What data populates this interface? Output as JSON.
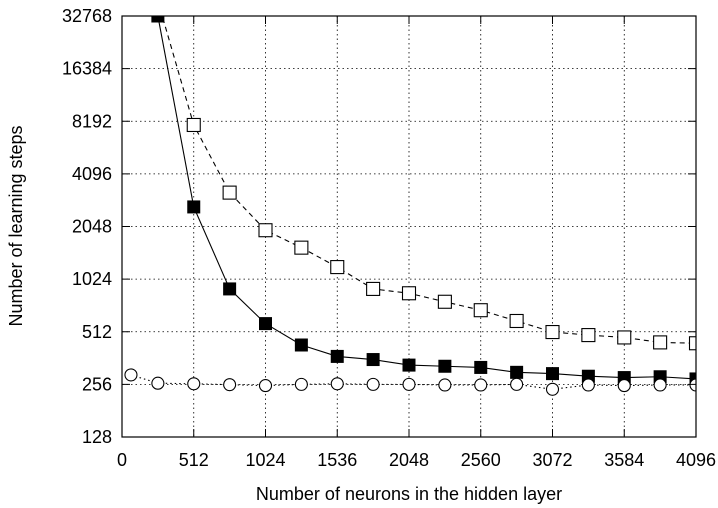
{
  "chart_data": {
    "type": "line",
    "xlabel": "Number of neurons in the hidden layer",
    "ylabel": "Number of learning steps",
    "xlim": [
      0,
      4096
    ],
    "ylim": [
      128,
      32768
    ],
    "yscale": "log2",
    "grid": true,
    "x_ticks": [
      0,
      512,
      1024,
      1536,
      2048,
      2560,
      3072,
      3584,
      4096
    ],
    "y_ticks": [
      128,
      256,
      512,
      1024,
      2048,
      4096,
      8192,
      16384,
      32768
    ],
    "series": [
      {
        "marker": "filled-square",
        "line_style": "solid",
        "x": [
          256,
          512,
          768,
          1024,
          1280,
          1536,
          1792,
          2048,
          2304,
          2560,
          2816,
          3072,
          3328,
          3584,
          3840,
          4096
        ],
        "y": [
          32768,
          2650,
          900,
          570,
          430,
          370,
          355,
          330,
          325,
          320,
          300,
          295,
          285,
          280,
          283,
          275
        ]
      },
      {
        "marker": "open-square",
        "line_style": "dashed",
        "x": [
          256,
          512,
          768,
          1024,
          1280,
          1536,
          1792,
          2048,
          2304,
          2560,
          2816,
          3072,
          3328,
          3584,
          3840,
          4096
        ],
        "y": [
          40000,
          7800,
          3200,
          1950,
          1550,
          1200,
          900,
          850,
          760,
          680,
          590,
          510,
          490,
          475,
          445,
          440
        ]
      },
      {
        "marker": "open-circle",
        "line_style": "dotted",
        "x": [
          64,
          256,
          512,
          768,
          1024,
          1280,
          1536,
          1792,
          2048,
          2304,
          2560,
          2816,
          3072,
          3328,
          3584,
          3840,
          4096
        ],
        "y": [
          290,
          260,
          258,
          255,
          252,
          256,
          258,
          256,
          256,
          254,
          254,
          256,
          240,
          254,
          252,
          254,
          254
        ]
      }
    ]
  }
}
